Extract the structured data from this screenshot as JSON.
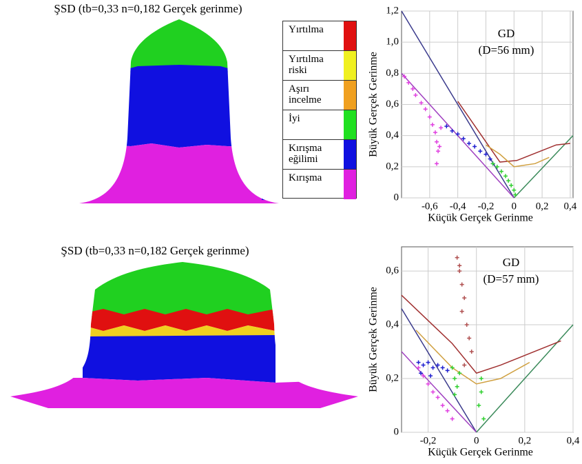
{
  "panels": [
    {
      "title": "ŞSD (tb=0,33 n=0,182 Gerçek gerinme)"
    },
    {
      "title": "ŞSD (tb=0,33 n=0,182 Gerçek gerinme)"
    }
  ],
  "legend": [
    {
      "label": "Yırtılma",
      "color": "#e01010"
    },
    {
      "label": "Yırtılma riski",
      "color": "#f0f020"
    },
    {
      "label": "Aşırı incelme",
      "color": "#f0a020"
    },
    {
      "label": "İyi",
      "color": "#20e020"
    },
    {
      "label": "Kırışma eğilimi",
      "color": "#1010e0"
    },
    {
      "label": "Kırışma",
      "color": "#e020e0"
    }
  ],
  "chart_data": [
    {
      "type": "scatter",
      "x_label": "Küçük Gerçek Gerinme",
      "y_label": "Büyük Gerçek Gerinme",
      "annotations": [
        "GD",
        "(D=56 mm)"
      ],
      "xlim": [
        -0.8,
        0.42
      ],
      "ylim": [
        0,
        1.2
      ],
      "xticks": [
        {
          "value": -0.6,
          "label": "-0,6"
        },
        {
          "value": -0.4,
          "label": "-0,4"
        },
        {
          "value": -0.2,
          "label": "-0,2"
        },
        0,
        {
          "value": 0.2,
          "label": "0,2"
        },
        {
          "value": 0.4,
          "label": "0,4"
        }
      ],
      "yticks": [
        0,
        {
          "value": 0.2,
          "label": "0,2"
        },
        {
          "value": 0.4,
          "label": "0,4"
        },
        {
          "value": 0.6,
          "label": "0,6"
        },
        {
          "value": 0.8,
          "label": "0,8"
        },
        {
          "value": 1.0,
          "label": "1,0"
        },
        {
          "value": 1.2,
          "label": "1,2"
        }
      ],
      "grid": true,
      "series": [
        {
          "mode": "line",
          "color": "#3a3a8c",
          "x": [
            -0.8,
            0
          ],
          "y": [
            1.2,
            0
          ]
        },
        {
          "mode": "line",
          "color": "#a040c0",
          "x": [
            -0.8,
            0
          ],
          "y": [
            0.8,
            0
          ]
        },
        {
          "mode": "line",
          "color": "#3a8a5a",
          "x": [
            0,
            0.42
          ],
          "y": [
            0,
            0.4
          ]
        },
        {
          "mode": "line",
          "color": "#a03030",
          "x": [
            -0.4,
            -0.1,
            0.02,
            0.3,
            0.4
          ],
          "y": [
            0.62,
            0.23,
            0.24,
            0.34,
            0.35
          ]
        },
        {
          "mode": "line",
          "color": "#d0a040",
          "x": [
            -0.2,
            -0.1,
            0,
            0.15,
            0.25
          ],
          "y": [
            0.34,
            0.28,
            0.2,
            0.22,
            0.26
          ]
        },
        {
          "mode": "points",
          "color": "#e040e0",
          "x": [
            -0.78,
            -0.75,
            -0.72,
            -0.7,
            -0.66,
            -0.63,
            -0.6,
            -0.58,
            -0.56,
            -0.55,
            -0.54,
            -0.52,
            -0.55,
            -0.53
          ],
          "y": [
            0.78,
            0.74,
            0.7,
            0.66,
            0.61,
            0.57,
            0.52,
            0.47,
            0.42,
            0.36,
            0.3,
            0.45,
            0.22,
            0.33
          ]
        },
        {
          "mode": "points",
          "color": "#2020d0",
          "x": [
            -0.48,
            -0.44,
            -0.4,
            -0.36,
            -0.32,
            -0.28,
            -0.24,
            -0.2,
            -0.17,
            -0.15
          ],
          "y": [
            0.46,
            0.43,
            0.41,
            0.38,
            0.35,
            0.33,
            0.3,
            0.28,
            0.25,
            0.22
          ]
        },
        {
          "mode": "points",
          "color": "#30d030",
          "x": [
            -0.15,
            -0.12,
            -0.09,
            -0.06,
            -0.04,
            -0.02,
            0,
            0.01
          ],
          "y": [
            0.22,
            0.2,
            0.17,
            0.14,
            0.11,
            0.08,
            0.05,
            0.02
          ]
        }
      ]
    },
    {
      "type": "scatter",
      "x_label": "Küçük Gerçek Gerinme",
      "y_label": "Büyük Gerçek Gerinme",
      "annotations": [
        "GD",
        "(D=57 mm)"
      ],
      "xlim": [
        -0.31,
        0.4
      ],
      "ylim": [
        0,
        0.69
      ],
      "xticks": [
        {
          "value": -0.2,
          "label": "-0,2"
        },
        0,
        {
          "value": 0.2,
          "label": "0,2"
        },
        {
          "value": 0.4,
          "label": "0,4"
        }
      ],
      "yticks": [
        0,
        {
          "value": 0.2,
          "label": "0,2"
        },
        {
          "value": 0.4,
          "label": "0,4"
        },
        {
          "value": 0.6,
          "label": "0,6"
        }
      ],
      "grid": true,
      "series": [
        {
          "mode": "line",
          "color": "#3a3a8c",
          "x": [
            -0.31,
            0
          ],
          "y": [
            0.46,
            0
          ]
        },
        {
          "mode": "line",
          "color": "#a040c0",
          "x": [
            -0.31,
            0
          ],
          "y": [
            0.3,
            0
          ]
        },
        {
          "mode": "line",
          "color": "#3a8a5a",
          "x": [
            0,
            0.4
          ],
          "y": [
            0,
            0.4
          ]
        },
        {
          "mode": "line",
          "color": "#a03030",
          "x": [
            -0.31,
            -0.1,
            0,
            0.1,
            0.35
          ],
          "y": [
            0.51,
            0.33,
            0.22,
            0.25,
            0.34
          ]
        },
        {
          "mode": "line",
          "color": "#d0a040",
          "x": [
            -0.25,
            -0.1,
            0,
            0.1,
            0.22
          ],
          "y": [
            0.38,
            0.24,
            0.18,
            0.2,
            0.26
          ]
        },
        {
          "mode": "points",
          "color": "#2020d0",
          "x": [
            -0.24,
            -0.22,
            -0.2,
            -0.18,
            -0.16,
            -0.14,
            -0.12,
            -0.23,
            -0.19
          ],
          "y": [
            0.26,
            0.25,
            0.26,
            0.24,
            0.25,
            0.24,
            0.23,
            0.22,
            0.21
          ]
        },
        {
          "mode": "points",
          "color": "#e040e0",
          "x": [
            -0.24,
            -0.22,
            -0.2,
            -0.18,
            -0.16,
            -0.14,
            -0.12,
            -0.1
          ],
          "y": [
            0.24,
            0.21,
            0.18,
            0.15,
            0.13,
            0.1,
            0.08,
            0.05
          ]
        },
        {
          "mode": "points",
          "color": "#30d030",
          "x": [
            -0.1,
            -0.09,
            -0.08,
            -0.09,
            -0.07,
            0.01,
            0.02,
            0.03,
            0.02
          ],
          "y": [
            0.24,
            0.2,
            0.17,
            0.14,
            0.22,
            0.1,
            0.15,
            0.05,
            0.2
          ]
        },
        {
          "mode": "points",
          "color": "#b05050",
          "x": [
            -0.08,
            -0.07,
            -0.06,
            -0.05,
            -0.06,
            -0.04,
            -0.03,
            -0.02,
            -0.05,
            -0.07
          ],
          "y": [
            0.65,
            0.6,
            0.55,
            0.5,
            0.45,
            0.4,
            0.35,
            0.3,
            0.25,
            0.62
          ]
        }
      ]
    }
  ]
}
